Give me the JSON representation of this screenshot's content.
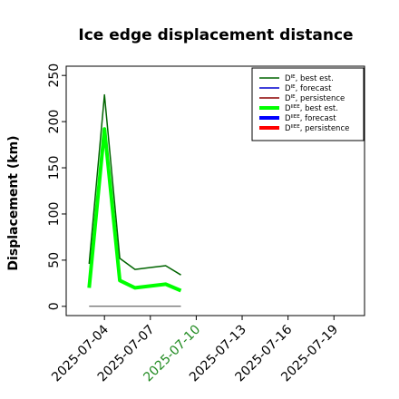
{
  "chart_data": {
    "type": "line",
    "title": "Ice edge displacement distance",
    "xlabel": "",
    "ylabel": "Displacement (km)",
    "x_ticks": [
      "2025-07-04",
      "2025-07-07",
      "2025-07-10",
      "2025-07-13",
      "2025-07-16",
      "2025-07-19"
    ],
    "x_tick_highlight": "2025-07-10",
    "x_tick_highlight_color": "#228b22",
    "xlim": [
      "2025-07-01T12:00",
      "2025-07-21T00:00"
    ],
    "y_ticks": [
      0,
      50,
      100,
      150,
      200,
      250
    ],
    "ylim": [
      -10,
      260
    ],
    "grid": false,
    "legend_position": "top-right",
    "legend": [
      {
        "sup": "IE",
        "suffix": ", best est.",
        "color": "#006400",
        "width": 1.5
      },
      {
        "sup": "IE",
        "suffix": ", forecast",
        "color": "#0000cd",
        "width": 1.5
      },
      {
        "sup": "IE",
        "suffix": ", persistence",
        "color": "#8b0000",
        "width": 1.5
      },
      {
        "sup": "IIEE",
        "suffix": ", best est.",
        "color": "#00ff00",
        "width": 4
      },
      {
        "sup": "IIEE",
        "suffix": ", forecast",
        "color": "#0000ff",
        "width": 4
      },
      {
        "sup": "IIEE",
        "suffix": ", persistence",
        "color": "#ff0000",
        "width": 4
      }
    ],
    "series": [
      {
        "color": "#00ff00",
        "width": 4,
        "x": [
          "2025-07-03",
          "2025-07-04",
          "2025-07-05",
          "2025-07-06",
          "2025-07-07",
          "2025-07-08",
          "2025-07-09"
        ],
        "y": [
          20,
          192,
          28,
          20,
          22,
          24,
          17
        ]
      },
      {
        "color": "#006400",
        "width": 1.5,
        "x": [
          "2025-07-03",
          "2025-07-04",
          "2025-07-05",
          "2025-07-06",
          "2025-07-07",
          "2025-07-08",
          "2025-07-09"
        ],
        "y": [
          46,
          229,
          52,
          40,
          42,
          44,
          34
        ]
      },
      {
        "color": "#444444",
        "width": 1,
        "x": [
          "2025-07-03",
          "2025-07-09"
        ],
        "y": [
          0,
          0
        ]
      }
    ]
  }
}
